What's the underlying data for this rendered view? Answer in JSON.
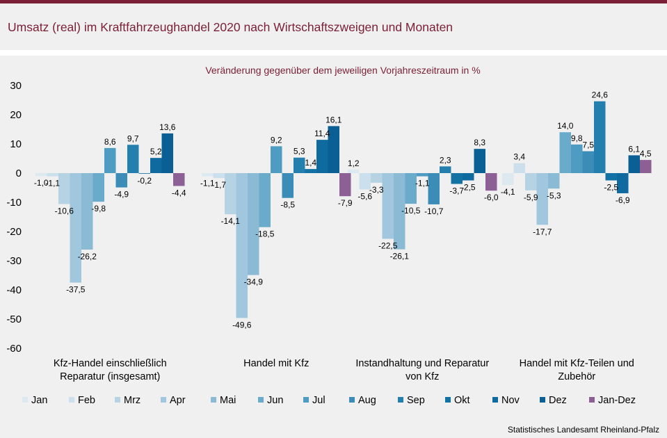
{
  "header": {
    "title": "Umsatz (real) im Kraftfahrzeughandel 2020 nach Wirtschaftszweigen und Monaten"
  },
  "source": "Statistisches Landesamt Rheinland-Pfalz",
  "chart_data": {
    "type": "bar",
    "title": "Umsatz (real) im Kraftfahrzeughandel 2020 nach Wirtschaftszweigen und Monaten",
    "subtitle": "Veränderung  gegenüber  dem jeweiligen Vorjahreszeitraum  in %",
    "ylim": [
      -60,
      30
    ],
    "yticks": [
      30,
      20,
      10,
      0,
      -10,
      -20,
      -30,
      -40,
      -50,
      -60
    ],
    "grid": false,
    "legend_position": "bottom",
    "categories": [
      [
        "Kfz-Handel einschließlich",
        "Reparatur (insgesamt)"
      ],
      [
        "Handel mit Kfz"
      ],
      [
        "Instandhaltung und Reparatur",
        "von Kfz"
      ],
      [
        "Handel mit Kfz-Teilen und",
        "Zubehör"
      ]
    ],
    "series": [
      {
        "name": "Jan",
        "color": "#dde9f0",
        "values": [
          -1.0,
          -1.1,
          1.2,
          -4.1
        ]
      },
      {
        "name": "Feb",
        "color": "#cbe0ec",
        "values": [
          -1.1,
          -1.7,
          -5.6,
          3.4
        ]
      },
      {
        "name": "Mrz",
        "color": "#b6d3e4",
        "values": [
          -10.6,
          -14.1,
          -3.3,
          -5.9
        ]
      },
      {
        "name": "Apr",
        "color": "#a0c7dd",
        "values": [
          -37.5,
          -49.6,
          -22.5,
          -17.7
        ]
      },
      {
        "name": "Mai",
        "color": "#8bbad5",
        "values": [
          -26.2,
          -34.9,
          -26.1,
          -5.3
        ]
      },
      {
        "name": "Jun",
        "color": "#6aabcb",
        "values": [
          -9.8,
          -18.5,
          -10.5,
          14.0
        ]
      },
      {
        "name": "Jul",
        "color": "#4f9cc2",
        "values": [
          8.6,
          9.2,
          -1.1,
          9.8
        ]
      },
      {
        "name": "Aug",
        "color": "#3b8db8",
        "values": [
          -4.9,
          -8.5,
          -10.7,
          7.5
        ]
      },
      {
        "name": "Sep",
        "color": "#237fae",
        "values": [
          9.7,
          5.3,
          2.3,
          24.6
        ]
      },
      {
        "name": "Okt",
        "color": "#1372a4",
        "values": [
          -0.2,
          1.4,
          -3.7,
          -2.5
        ]
      },
      {
        "name": "Nov",
        "color": "#0f6aa0",
        "values": [
          5.2,
          11.4,
          -2.5,
          -6.9
        ]
      },
      {
        "name": "Dez",
        "color": "#0a5f95",
        "values": [
          13.6,
          16.1,
          8.3,
          6.1
        ]
      },
      {
        "name": "Jan-Dez",
        "color": "#8c5f95",
        "values": [
          -4.4,
          -7.9,
          -6.0,
          4.5
        ]
      }
    ]
  }
}
